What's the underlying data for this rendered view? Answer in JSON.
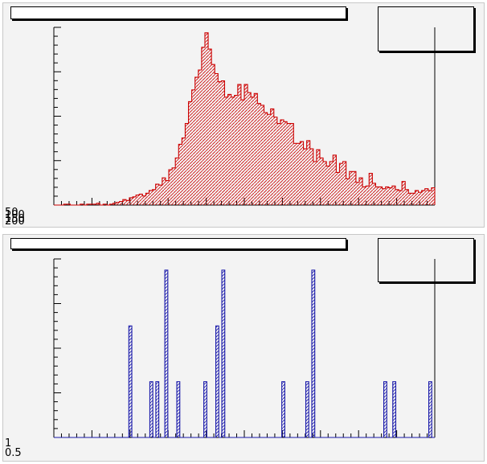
{
  "chart_data": [
    {
      "type": "bar",
      "title": "",
      "xlabel": "",
      "ylabel": "",
      "y_tick_labels": [
        "50",
        "100",
        "150",
        "200"
      ],
      "ylim": [
        0,
        200
      ],
      "line_color": "#cc0000",
      "fill_color": "#cc0000",
      "fill_pattern": "hatched",
      "values": [
        0,
        0,
        0,
        1,
        1,
        0,
        0,
        0,
        1,
        0,
        1,
        1,
        1,
        2,
        0,
        1,
        0,
        1,
        2,
        3,
        4,
        6,
        5,
        8,
        9,
        11,
        12,
        10,
        13,
        16,
        17,
        23,
        22,
        30,
        27,
        39,
        41,
        52,
        67,
        74,
        90,
        114,
        127,
        141,
        149,
        174,
        190,
        172,
        155,
        145,
        136,
        137,
        119,
        122,
        119,
        121,
        133,
        116,
        133,
        124,
        119,
        123,
        112,
        110,
        102,
        100,
        106,
        97,
        90,
        94,
        92,
        90,
        90,
        68,
        68,
        70,
        62,
        71,
        62,
        48,
        61,
        52,
        48,
        43,
        48,
        55,
        36,
        46,
        48,
        29,
        37,
        37,
        25,
        30,
        20,
        21,
        35,
        24,
        20,
        20,
        18,
        20,
        19,
        21,
        17,
        16,
        26,
        17,
        13,
        13,
        16,
        14,
        16,
        18,
        16,
        19
      ]
    },
    {
      "type": "bar",
      "title": "",
      "xlabel": "",
      "ylabel": "",
      "y_tick_labels": [
        "0.5",
        "1"
      ],
      "ylim": [
        0,
        1
      ],
      "line_color": "#1a1aaa",
      "fill_color": "#1a1aaa",
      "fill_pattern": "hatched",
      "values": [
        0,
        0,
        0,
        0,
        0,
        0,
        0,
        0,
        0,
        0,
        0,
        0,
        0,
        0,
        0,
        0,
        0,
        0,
        0,
        0,
        0,
        0,
        0,
        0,
        0,
        0.6,
        0,
        0,
        0,
        0,
        0,
        0,
        0.3,
        0,
        0.3,
        0,
        0,
        0.9,
        0,
        0,
        0,
        0.3,
        0,
        0,
        0,
        0,
        0,
        0,
        0,
        0,
        0.3,
        0,
        0,
        0,
        0.6,
        0,
        0.9,
        0,
        0,
        0,
        0,
        0,
        0,
        0,
        0,
        0,
        0,
        0,
        0,
        0,
        0,
        0,
        0,
        0,
        0,
        0,
        0.3,
        0,
        0,
        0,
        0,
        0,
        0,
        0,
        0.3,
        0,
        0.9,
        0,
        0,
        0,
        0,
        0,
        0,
        0,
        0,
        0,
        0,
        0,
        0,
        0,
        0,
        0,
        0,
        0,
        0,
        0,
        0,
        0,
        0,
        0,
        0.3,
        0,
        0,
        0.3,
        0,
        0,
        0,
        0,
        0,
        0,
        0,
        0,
        0,
        0,
        0,
        0.3,
        0
      ]
    }
  ]
}
